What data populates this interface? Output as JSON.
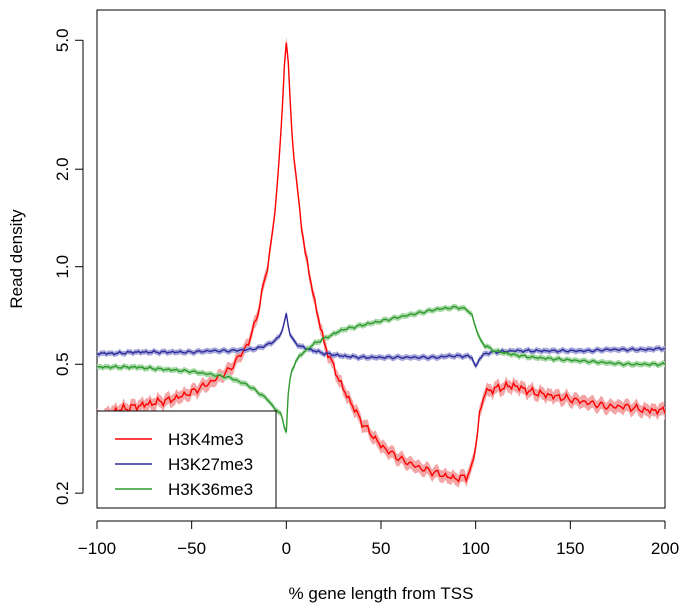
{
  "chart_data": {
    "type": "line",
    "title": "",
    "xlabel": "% gene length from TSS",
    "ylabel": "Read density",
    "xlim": [
      -100,
      200
    ],
    "ylim": [
      0.18,
      6.2
    ],
    "yscale": "log",
    "xticks": [
      -100,
      -50,
      0,
      50,
      100,
      150,
      200
    ],
    "xtick_labels": [
      "−100",
      "−50",
      "0",
      "50",
      "100",
      "150",
      "200"
    ],
    "yticks": [
      0.2,
      0.5,
      1.0,
      2.0,
      5.0
    ],
    "ytick_labels": [
      "0.2",
      "0.5",
      "1.0",
      "2.0",
      "5.0"
    ],
    "grid": false,
    "legend_position": "bottom-left",
    "x": [
      -100,
      -90,
      -80,
      -70,
      -60,
      -50,
      -40,
      -30,
      -20,
      -15,
      -10,
      -7,
      -5,
      -3,
      -2,
      -1,
      0,
      1,
      2,
      3,
      5,
      7,
      10,
      15,
      20,
      25,
      30,
      40,
      50,
      60,
      70,
      80,
      85,
      90,
      95,
      98,
      100,
      102,
      105,
      110,
      120,
      130,
      140,
      150,
      160,
      170,
      180,
      190,
      200
    ],
    "series": [
      {
        "name": "H3K4me3",
        "color": "#ff0000",
        "band_color": "#f4a6a6",
        "values": [
          0.34,
          0.36,
          0.37,
          0.38,
          0.39,
          0.41,
          0.44,
          0.48,
          0.58,
          0.72,
          1.0,
          1.3,
          1.75,
          2.5,
          3.2,
          4.2,
          4.95,
          4.2,
          3.3,
          2.6,
          1.9,
          1.5,
          1.1,
          0.78,
          0.58,
          0.49,
          0.42,
          0.33,
          0.28,
          0.255,
          0.24,
          0.23,
          0.225,
          0.222,
          0.225,
          0.24,
          0.28,
          0.35,
          0.41,
          0.42,
          0.43,
          0.41,
          0.4,
          0.39,
          0.38,
          0.37,
          0.37,
          0.36,
          0.36
        ]
      },
      {
        "name": "H3K27me3",
        "color": "#2b2b9e",
        "band_color": "#a8a8d8",
        "values": [
          0.54,
          0.54,
          0.545,
          0.545,
          0.545,
          0.545,
          0.55,
          0.55,
          0.555,
          0.56,
          0.575,
          0.585,
          0.6,
          0.62,
          0.64,
          0.67,
          0.72,
          0.66,
          0.62,
          0.6,
          0.58,
          0.57,
          0.56,
          0.55,
          0.54,
          0.535,
          0.53,
          0.525,
          0.525,
          0.525,
          0.525,
          0.525,
          0.53,
          0.53,
          0.53,
          0.525,
          0.49,
          0.52,
          0.54,
          0.545,
          0.55,
          0.55,
          0.55,
          0.55,
          0.55,
          0.555,
          0.555,
          0.555,
          0.56
        ]
      },
      {
        "name": "H3K36me3",
        "color": "#2e9a2e",
        "band_color": "#a8d8a8",
        "values": [
          0.49,
          0.49,
          0.49,
          0.485,
          0.48,
          0.475,
          0.465,
          0.455,
          0.43,
          0.41,
          0.39,
          0.37,
          0.36,
          0.35,
          0.34,
          0.32,
          0.31,
          0.4,
          0.45,
          0.48,
          0.51,
          0.53,
          0.55,
          0.58,
          0.6,
          0.62,
          0.64,
          0.66,
          0.68,
          0.7,
          0.72,
          0.74,
          0.745,
          0.75,
          0.74,
          0.71,
          0.65,
          0.6,
          0.57,
          0.55,
          0.535,
          0.525,
          0.52,
          0.515,
          0.51,
          0.505,
          0.5,
          0.5,
          0.5
        ]
      }
    ]
  }
}
